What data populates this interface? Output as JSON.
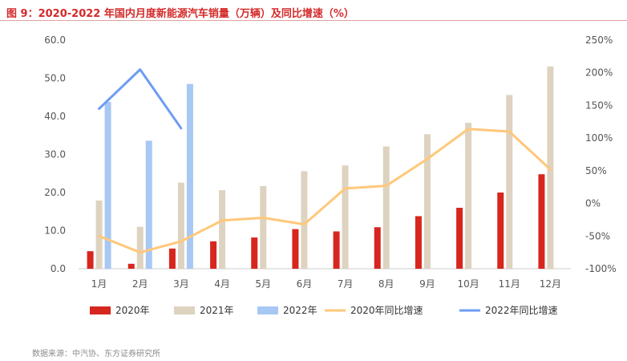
{
  "title": "图 9：2020-2022 年国内月度新能源汽车销量（万辆）及同比增速（%）",
  "source": "数据来源：中汽协、东方证券研究所",
  "colors": {
    "title": "#d42a2a",
    "s2020": "#d7261e",
    "s2021": "#ddd3c0",
    "s2022": "#a8c8f4",
    "g2020": "#ffc87a",
    "g2022": "#6e9cf4",
    "axis": "#cccccc"
  },
  "chart_data": {
    "type": "bar",
    "categories": [
      "1月",
      "2月",
      "3月",
      "4月",
      "5月",
      "6月",
      "7月",
      "8月",
      "9月",
      "10月",
      "11月",
      "12月"
    ],
    "ylim": [
      0,
      60
    ],
    "y_ticks": [
      "60.0",
      "50.0",
      "40.0",
      "30.0",
      "20.0",
      "10.0",
      "0.0"
    ],
    "y2lim": [
      -100,
      250
    ],
    "y2_ticks": [
      "250%",
      "200%",
      "150%",
      "100%",
      "50%",
      "0%",
      "-50%",
      "-100%"
    ],
    "grid": false,
    "legend_position": "bottom",
    "series": [
      {
        "name": "2020年",
        "kind": "bar",
        "values": [
          4.6,
          1.3,
          5.3,
          7.2,
          8.2,
          10.4,
          9.8,
          10.9,
          13.8,
          16.0,
          20.0,
          24.8
        ]
      },
      {
        "name": "2021年",
        "kind": "bar",
        "values": [
          17.9,
          11.0,
          22.6,
          20.6,
          21.7,
          25.6,
          27.1,
          32.1,
          35.3,
          38.3,
          45.6,
          53.1
        ]
      },
      {
        "name": "2022年",
        "kind": "bar",
        "values": [
          43.8,
          33.6,
          48.5,
          null,
          null,
          null,
          null,
          null,
          null,
          null,
          null,
          null
        ]
      },
      {
        "name": "2020年同比增速",
        "kind": "line",
        "axis": "right",
        "values": [
          -50,
          -75,
          -58,
          -26,
          -22,
          -32,
          23,
          27,
          68,
          114,
          110,
          52
        ]
      },
      {
        "name": "2022年同比增速",
        "kind": "line",
        "axis": "right",
        "values": [
          145,
          205,
          115,
          null,
          null,
          null,
          null,
          null,
          null,
          null,
          null,
          null
        ]
      }
    ]
  }
}
